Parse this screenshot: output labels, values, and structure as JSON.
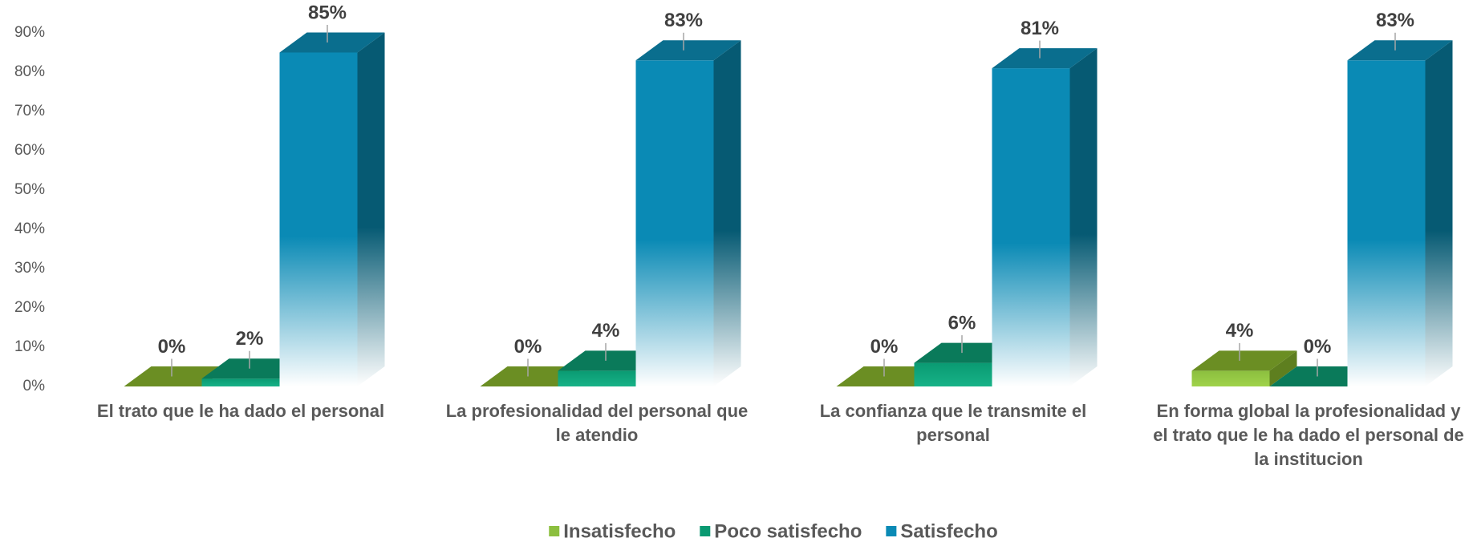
{
  "chart_data": {
    "type": "bar3d",
    "categories": [
      "El trato que le ha dado el personal",
      "La profesionalidad del personal que le atendio",
      "La confianza que le transmite el personal",
      "En forma global la profesionalidad y el trato que le ha dado el personal de la institucion"
    ],
    "series": [
      {
        "name": "Insatisfecho",
        "color": "#8cbf3f",
        "values": [
          0,
          0,
          0,
          4
        ],
        "value_labels": [
          "0%",
          "0%",
          "0%",
          "4%"
        ]
      },
      {
        "name": "Poco satisfecho",
        "color": "#0a9a72",
        "values": [
          2,
          4,
          6,
          0
        ],
        "value_labels": [
          "2%",
          "4%",
          "6%",
          "0%"
        ]
      },
      {
        "name": "Satisfecho",
        "color": "#0a8ab5",
        "values": [
          85,
          83,
          81,
          83
        ],
        "value_labels": [
          "85%",
          "83%",
          "81%",
          "83%"
        ]
      }
    ],
    "ylim": [
      0,
      90
    ],
    "yticks": [
      {
        "value": 0,
        "label": "0%"
      },
      {
        "value": 10,
        "label": "10%"
      },
      {
        "value": 20,
        "label": "20%"
      },
      {
        "value": 30,
        "label": "30%"
      },
      {
        "value": 40,
        "label": "40%"
      },
      {
        "value": 50,
        "label": "50%"
      },
      {
        "value": 60,
        "label": "60%"
      },
      {
        "value": 70,
        "label": "70%"
      },
      {
        "value": 80,
        "label": "80%"
      },
      {
        "value": 90,
        "label": "90%"
      }
    ],
    "legend": "bottom"
  }
}
